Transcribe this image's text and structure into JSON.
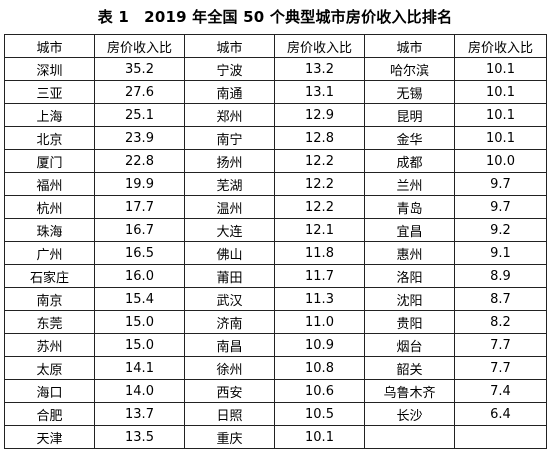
{
  "title": "表 1　2019 年全国 50 个典型城市房价收入比排名",
  "headers": [
    "城市",
    "房价收入比",
    "城市",
    "房价收入比",
    "城市",
    "房价收入比"
  ],
  "rows": [
    [
      "深圳",
      "35.2",
      "宁波",
      "13.2",
      "哈尔滨",
      "10.1"
    ],
    [
      "三亚",
      "27.6",
      "南通",
      "13.1",
      "无锡",
      "10.1"
    ],
    [
      "上海",
      "25.1",
      "郑州",
      "12.9",
      "昆明",
      "10.1"
    ],
    [
      "北京",
      "23.9",
      "南宁",
      "12.8",
      "金华",
      "10.1"
    ],
    [
      "厦门",
      "22.8",
      "扬州",
      "12.2",
      "成都",
      "10.0"
    ],
    [
      "福州",
      "19.9",
      "芜湖",
      "12.2",
      "兰州",
      "9.7"
    ],
    [
      "杭州",
      "17.7",
      "温州",
      "12.2",
      "青岛",
      "9.7"
    ],
    [
      "珠海",
      "16.7",
      "大连",
      "12.1",
      "宜昌",
      "9.2"
    ],
    [
      "广州",
      "16.5",
      "佛山",
      "11.8",
      "惠州",
      "9.1"
    ],
    [
      "石家庄",
      "16.0",
      "莆田",
      "11.7",
      "洛阳",
      "8.9"
    ],
    [
      "南京",
      "15.4",
      "武汉",
      "11.3",
      "沈阳",
      "8.7"
    ],
    [
      "东莞",
      "15.0",
      "济南",
      "11.0",
      "贵阳",
      "8.2"
    ],
    [
      "苏州",
      "15.0",
      "南昌",
      "10.9",
      "烟台",
      "7.7"
    ],
    [
      "太原",
      "14.1",
      "徐州",
      "10.8",
      "韶关",
      "7.7"
    ],
    [
      "海口",
      "14.0",
      "西安",
      "10.6",
      "乌鲁木齐",
      "7.4"
    ],
    [
      "合肥",
      "13.7",
      "日照",
      "10.5",
      "长沙",
      "6.4"
    ],
    [
      "天津",
      "13.5",
      "重庆",
      "10.1",
      "",
      ""
    ]
  ]
}
